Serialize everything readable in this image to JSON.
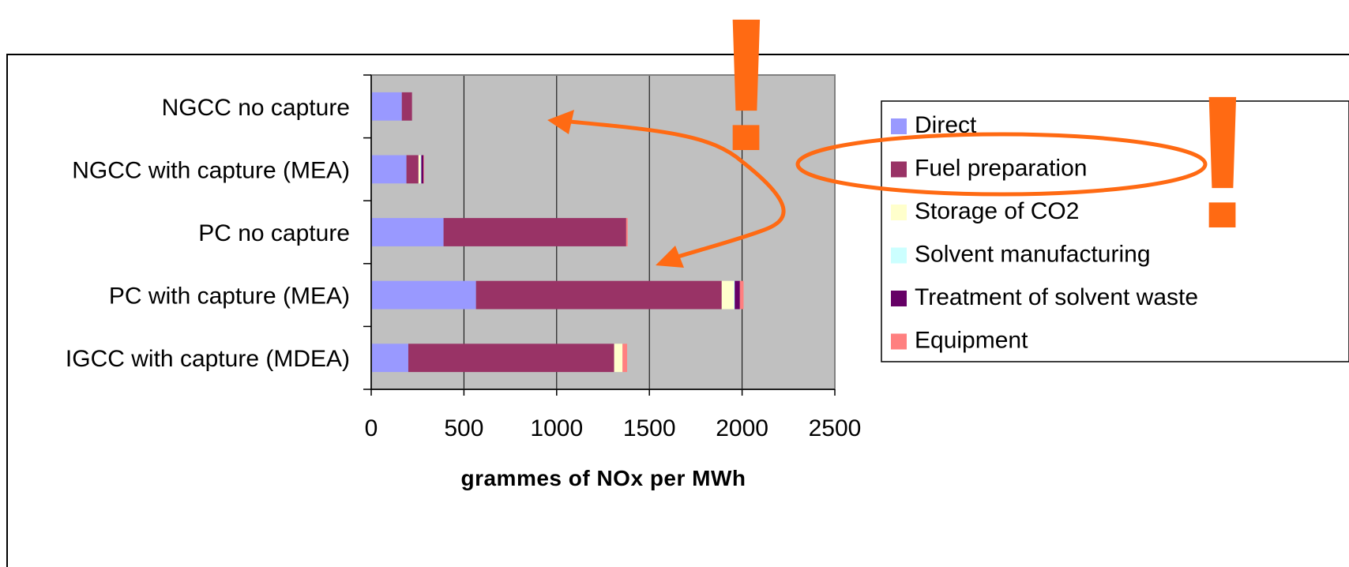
{
  "colors": {
    "plot_background": "#c0c0c0",
    "annotation": "#ff6a13"
  },
  "chart_data": {
    "type": "bar",
    "orientation": "horizontal",
    "stacked": true,
    "categories": [
      "NGCC no capture",
      "NGCC with capture (MEA)",
      "PC no capture",
      "PC with capture (MEA)",
      "IGCC with capture (MDEA)"
    ],
    "series": [
      {
        "name": "Direct",
        "color": "#9999ff",
        "values": [
          165,
          190,
          390,
          565,
          200
        ]
      },
      {
        "name": "Fuel preparation",
        "color": "#993366",
        "values": [
          55,
          65,
          985,
          1325,
          1110
        ]
      },
      {
        "name": "Storage of CO2",
        "color": "#ffffcc",
        "values": [
          0,
          10,
          0,
          65,
          45
        ]
      },
      {
        "name": "Solvent manufacturing",
        "color": "#ccffff",
        "values": [
          0,
          5,
          0,
          5,
          0
        ]
      },
      {
        "name": "Treatment of solvent waste",
        "color": "#660066",
        "values": [
          0,
          12,
          0,
          28,
          0
        ]
      },
      {
        "name": "Equipment",
        "color": "#ff8080",
        "values": [
          0,
          3,
          8,
          20,
          25
        ]
      }
    ],
    "xticks": [
      "0",
      "500",
      "1000",
      "1500",
      "2000",
      "2500"
    ],
    "xlim": [
      0,
      2500
    ],
    "xlabel": "grammes of NOx per MWh",
    "title": "",
    "ylabel": "",
    "grid": "vertical",
    "legend": "right"
  },
  "annotations": {
    "exclamation_1": "!",
    "exclamation_2": "!"
  }
}
